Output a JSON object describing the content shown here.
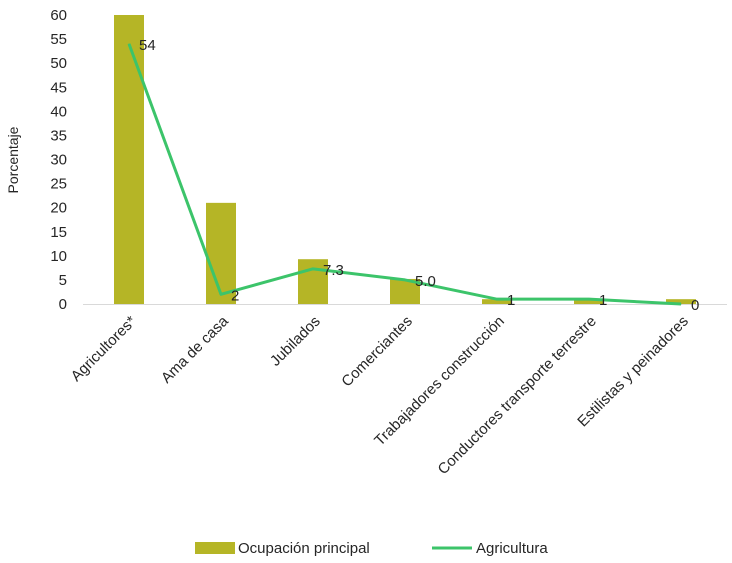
{
  "chart_data": {
    "type": "bar",
    "title": "",
    "xlabel": "",
    "ylabel": "Porcentaje",
    "ylim": [
      0,
      60
    ],
    "yticks": [
      0,
      5,
      10,
      15,
      20,
      25,
      30,
      35,
      40,
      45,
      50,
      55,
      60
    ],
    "grid": false,
    "legend_position": "bottom",
    "categories": [
      "Agricultores*",
      "Ama de casa",
      "Jubilados",
      "Comerciantes",
      "Trabajadores construcción",
      "Conductores transporte terrestre",
      "Estilistas y peinadores"
    ],
    "series": [
      {
        "name": "Ocupación principal",
        "type": "bar",
        "color": "#b5b526",
        "values": [
          60,
          21,
          9.3,
          5.2,
          1,
          1,
          1
        ]
      },
      {
        "name": "Agricultura",
        "type": "line",
        "color": "#3cc46a",
        "values": [
          54,
          2,
          7.3,
          5.0,
          1,
          1,
          0
        ],
        "labels": [
          "54",
          "2",
          "7.3",
          "5.0",
          "1",
          "1",
          "0"
        ]
      }
    ]
  }
}
